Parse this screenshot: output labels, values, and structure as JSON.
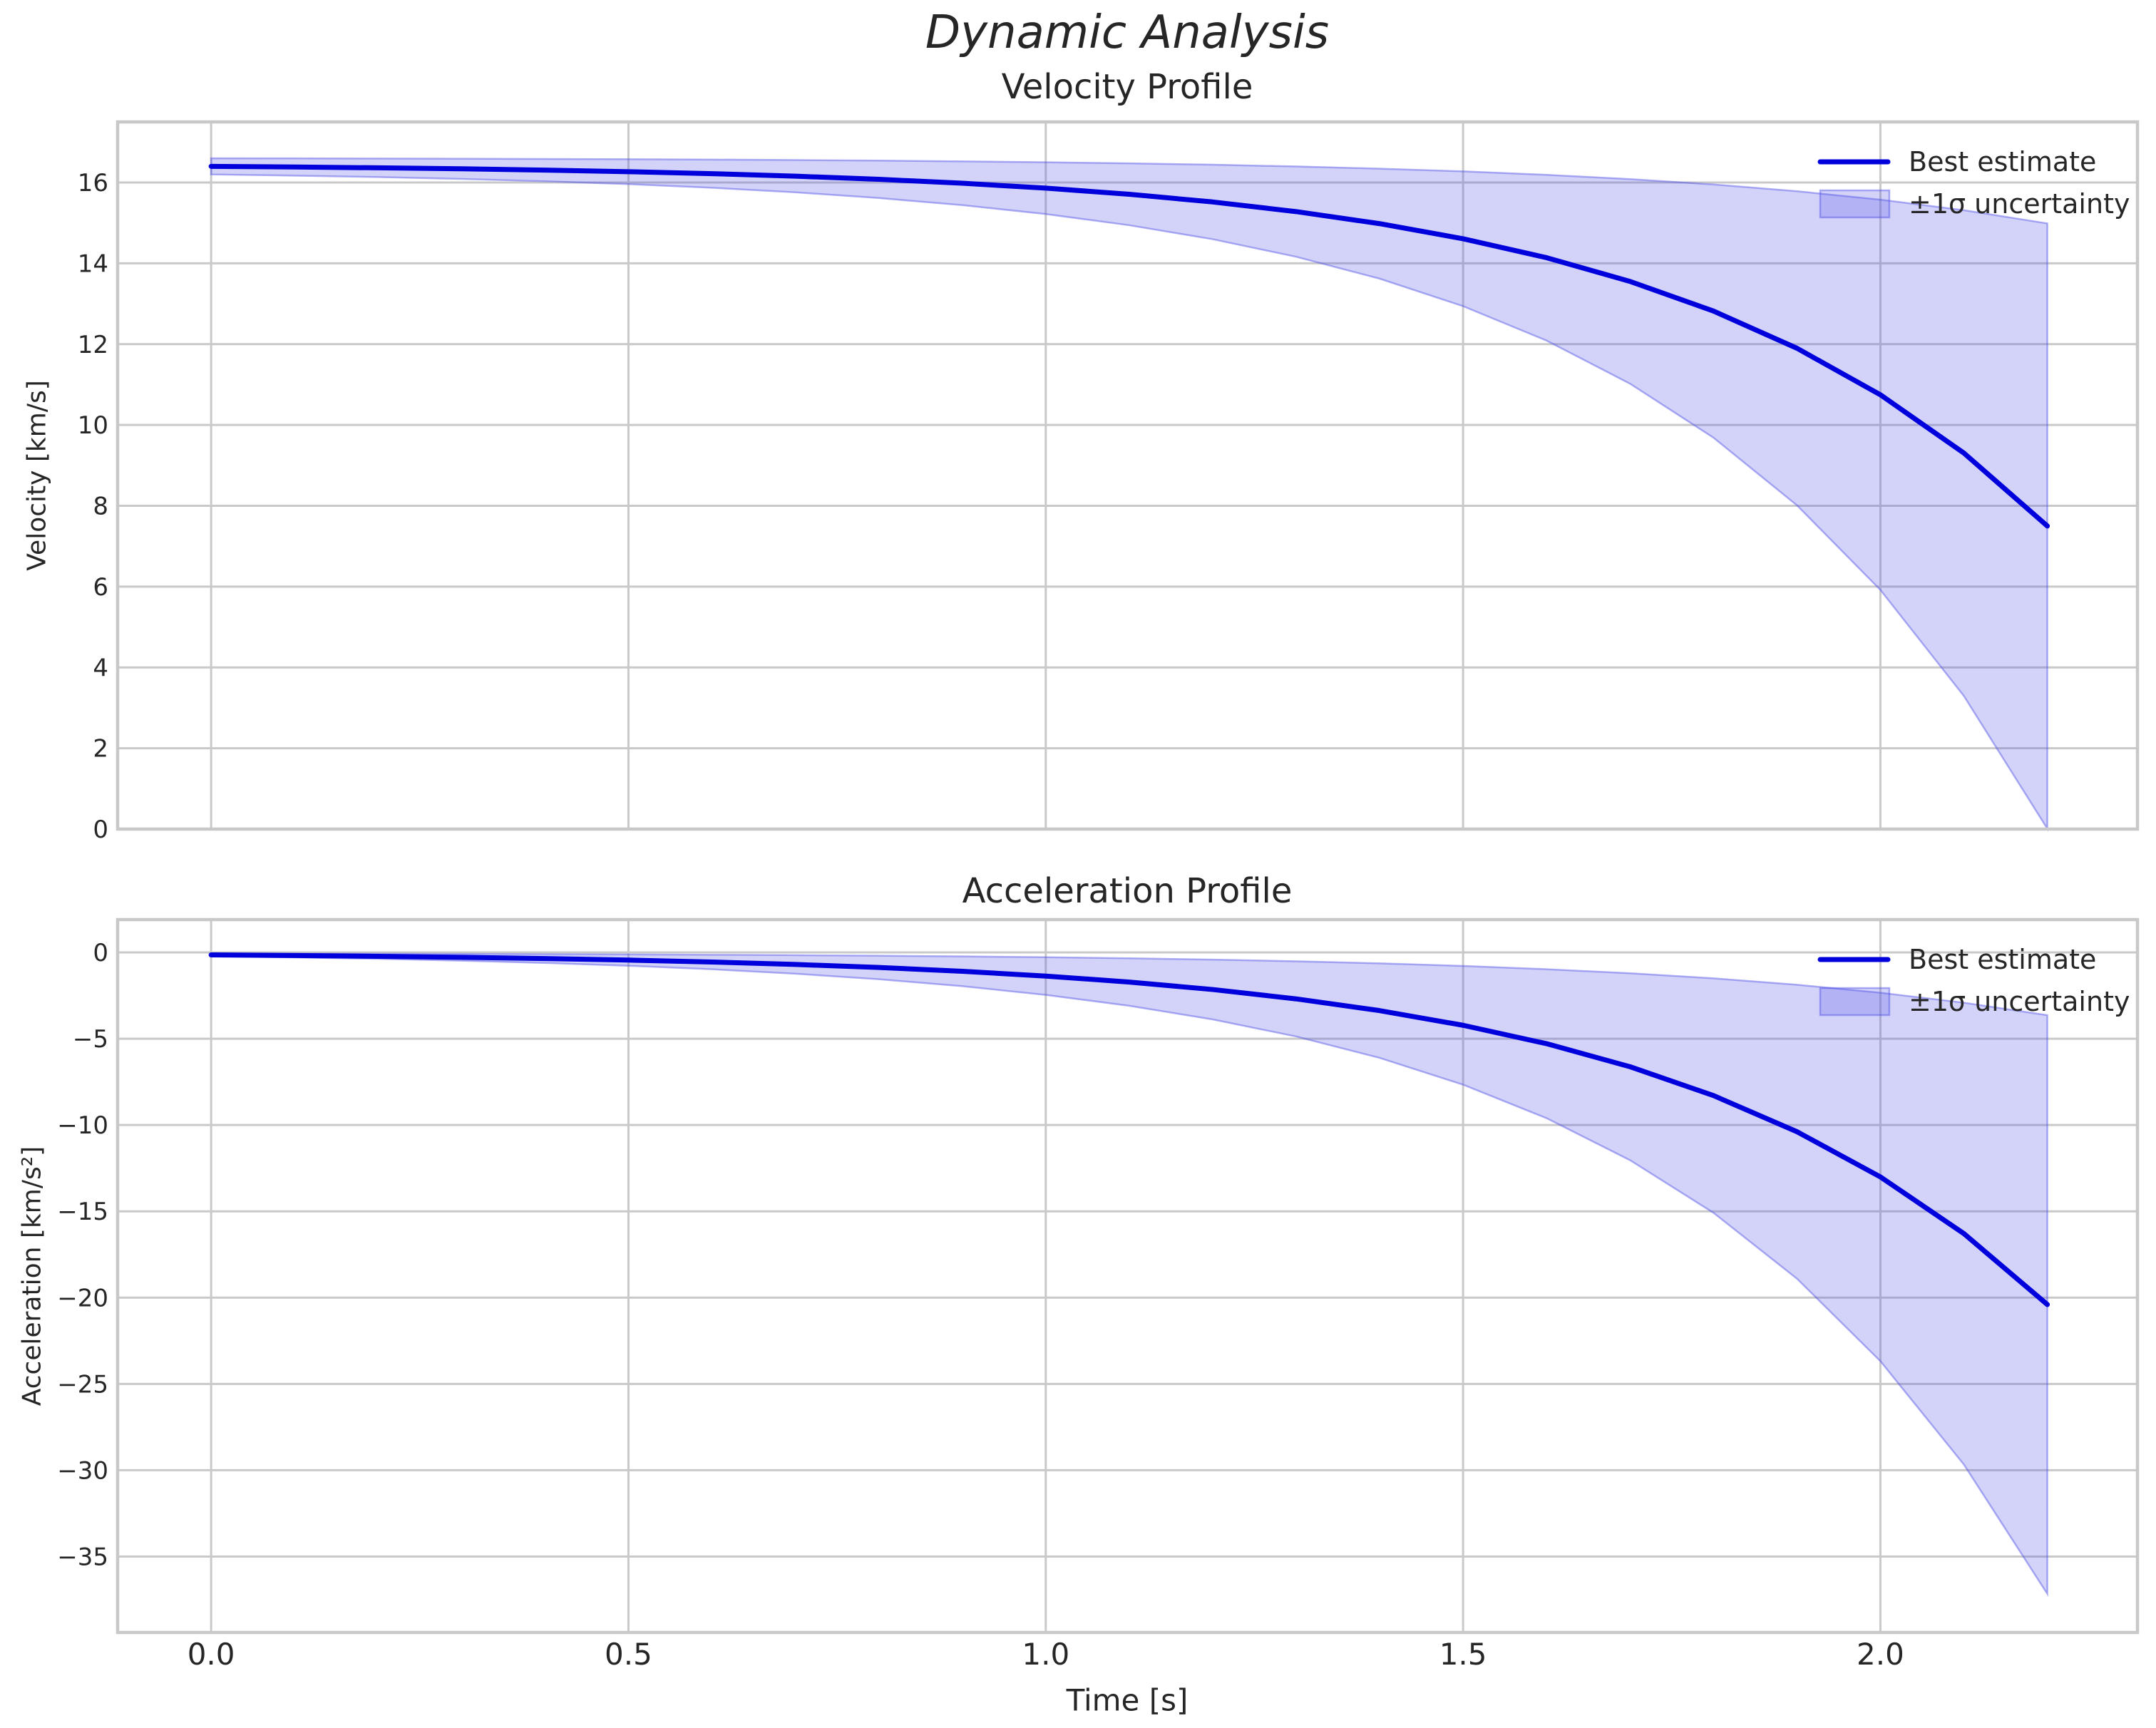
{
  "figure": {
    "title": "Dynamic Analysis",
    "xlabel": "Time [s]",
    "background": "#ffffff",
    "text_color": "#262626"
  },
  "legend": {
    "best_label": "Best estimate",
    "band_label": "±1σ uncertainty",
    "position": "upper right",
    "frame": false
  },
  "style": {
    "line_color": "#0000dd",
    "band_color": "#5050e6",
    "band_fill_opacity": 0.25,
    "band_edge_opacity": 0.45,
    "grid_color": "#c9c9c9",
    "spine_color": "#c8c8c8",
    "grid_on": true
  },
  "chart_data": [
    {
      "type": "line",
      "title": "Velocity Profile",
      "ylabel": "Velocity [km/s]",
      "xlabel": "Time [s]",
      "xlim": [
        -0.112,
        2.308
      ],
      "ylim": [
        0,
        17.5
      ],
      "xticks": {
        "values": [
          0,
          0.5,
          1.0,
          1.5,
          2.0
        ],
        "labels": [
          "0.0",
          "0.5",
          "1.0",
          "1.5",
          "2.0"
        ]
      },
      "yticks": {
        "values": [
          0,
          2,
          4,
          6,
          8,
          10,
          12,
          14,
          16
        ],
        "labels": [
          "0",
          "2",
          "4",
          "6",
          "8",
          "10",
          "12",
          "14",
          "16"
        ]
      },
      "x": [
        0.0,
        0.1,
        0.2,
        0.3,
        0.4,
        0.5,
        0.6,
        0.7,
        0.8,
        0.9,
        1.0,
        1.1,
        1.2,
        1.3,
        1.4,
        1.5,
        1.6,
        1.7,
        1.8,
        1.9,
        2.0,
        2.1,
        2.2
      ],
      "series": [
        {
          "name": "Best estimate",
          "values": [
            16.4,
            16.384,
            16.364,
            16.339,
            16.307,
            16.268,
            16.219,
            16.157,
            16.079,
            15.982,
            15.861,
            15.709,
            15.519,
            15.28,
            14.982,
            14.608,
            14.14,
            13.553,
            12.819,
            11.899,
            10.747,
            9.305,
            7.499
          ]
        },
        {
          "name": "+1σ bound",
          "values": [
            16.6,
            16.597,
            16.594,
            16.589,
            16.583,
            16.576,
            16.568,
            16.556,
            16.542,
            16.524,
            16.502,
            16.475,
            16.441,
            16.397,
            16.343,
            16.276,
            16.191,
            16.084,
            15.952,
            15.785,
            15.576,
            15.315,
            14.988
          ]
        },
        {
          "name": "−1σ bound",
          "values": [
            16.2,
            16.171,
            16.134,
            16.089,
            16.031,
            15.96,
            15.87,
            15.758,
            15.616,
            15.44,
            15.22,
            14.943,
            14.597,
            14.163,
            13.621,
            12.94,
            12.089,
            11.022,
            9.686,
            8.013,
            5.918,
            3.295,
            0.01
          ]
        }
      ]
    },
    {
      "type": "line",
      "title": "Acceleration Profile",
      "ylabel": "Acceleration [km/s²]",
      "xlabel": "Time [s]",
      "xlim": [
        -0.112,
        2.308
      ],
      "ylim": [
        -39.4,
        1.9
      ],
      "xticks": {
        "values": [
          0,
          0.5,
          1.0,
          1.5,
          2.0
        ],
        "labels": [
          "0.0",
          "0.5",
          "1.0",
          "1.5",
          "2.0"
        ]
      },
      "yticks": {
        "values": [
          0,
          -5,
          -10,
          -15,
          -20,
          -25,
          -30,
          -35
        ],
        "labels": [
          "0",
          "−5",
          "−10",
          "−15",
          "−20",
          "−25",
          "−30",
          "−35"
        ]
      },
      "x": [
        0.0,
        0.1,
        0.2,
        0.3,
        0.4,
        0.5,
        0.6,
        0.7,
        0.8,
        0.9,
        1.0,
        1.1,
        1.2,
        1.3,
        1.4,
        1.5,
        1.6,
        1.7,
        1.8,
        1.9,
        2.0,
        2.1,
        2.2
      ],
      "series": [
        {
          "name": "Best estimate",
          "values": [
            -0.145,
            -0.181,
            -0.227,
            -0.284,
            -0.355,
            -0.445,
            -0.557,
            -0.698,
            -0.874,
            -1.095,
            -1.371,
            -1.717,
            -2.15,
            -2.693,
            -3.372,
            -4.223,
            -5.288,
            -6.623,
            -8.294,
            -10.387,
            -13.007,
            -16.29,
            -20.4
          ]
        },
        {
          "name": "+1σ bound",
          "values": [
            -0.065,
            -0.071,
            -0.079,
            -0.089,
            -0.102,
            -0.117,
            -0.137,
            -0.162,
            -0.193,
            -0.232,
            -0.281,
            -0.342,
            -0.419,
            -0.514,
            -0.634,
            -0.784,
            -0.973,
            -1.209,
            -1.503,
            -1.873,
            -2.336,
            -2.914,
            -3.639
          ]
        },
        {
          "name": "−1σ bound",
          "values": [
            -0.225,
            -0.291,
            -0.374,
            -0.478,
            -0.609,
            -0.773,
            -0.977,
            -1.234,
            -1.555,
            -1.957,
            -2.461,
            -3.092,
            -3.881,
            -4.871,
            -6.11,
            -7.662,
            -9.604,
            -12.037,
            -15.085,
            -18.9,
            -23.68,
            -29.666,
            -37.161
          ]
        }
      ]
    }
  ]
}
